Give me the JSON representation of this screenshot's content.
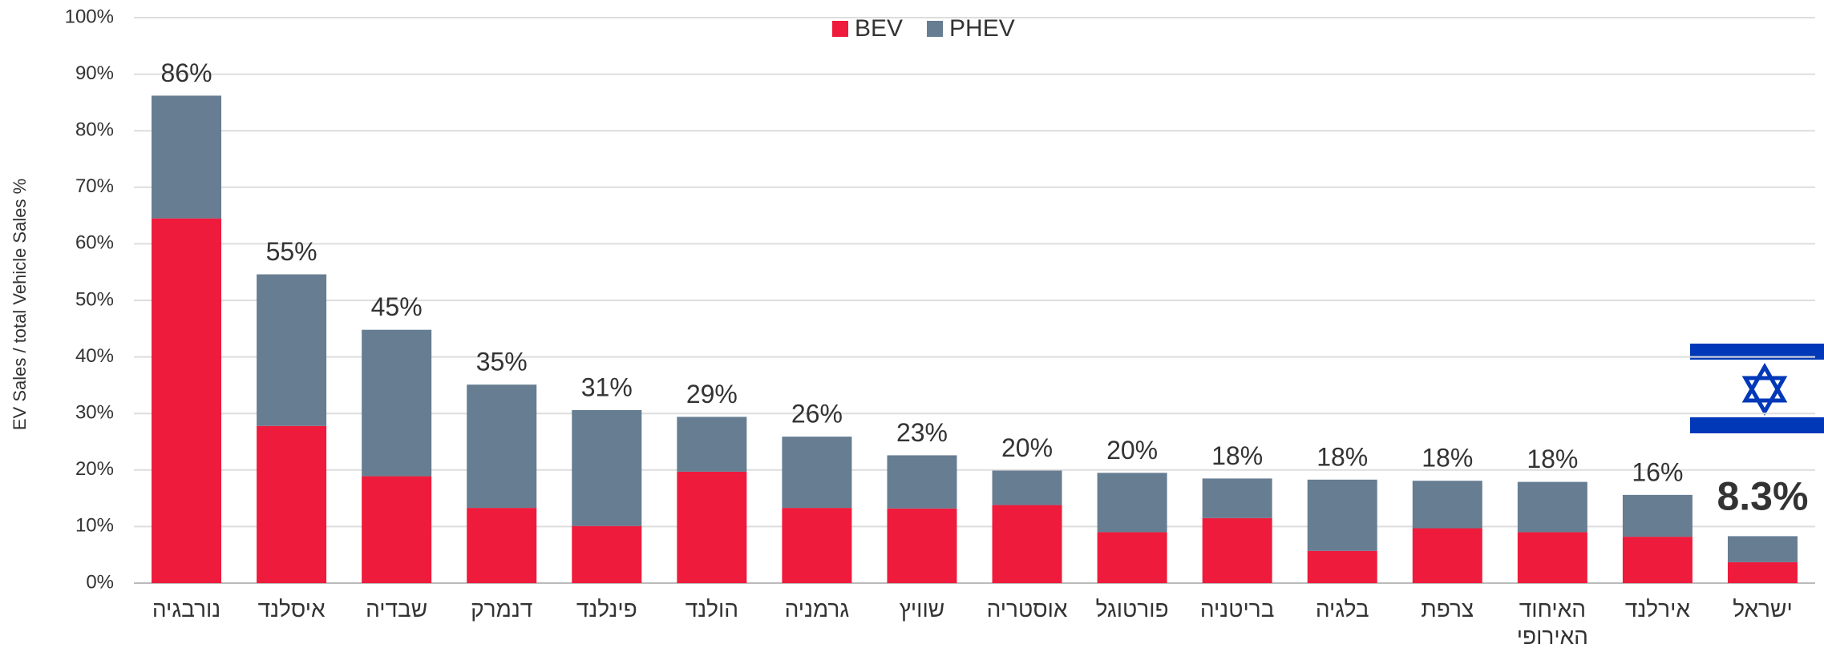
{
  "chart_data": {
    "type": "stacked-bar",
    "y_label": "EV Sales / total Vehicle Sales %",
    "categories": [
      "נורבגיה",
      "איסלנד",
      "שבדיה",
      "דנמרק",
      "פינלנד",
      "הולנד",
      "גרמניה",
      "שוויץ",
      "אוסטריה",
      "פורטוגל",
      "בריטניה",
      "בלגיה",
      "צרפת",
      "האיחוד האירופי",
      "אירלנד",
      "ישראל"
    ],
    "series": [
      {
        "name": "BEV",
        "color": "#ee1b3c",
        "values": [
          64.5,
          27.8,
          18.9,
          13.3,
          10.1,
          19.7,
          13.3,
          13.2,
          13.8,
          9.0,
          11.5,
          5.7,
          9.7,
          9.0,
          8.2,
          3.7
        ]
      },
      {
        "name": "PHEV",
        "color": "#667d92",
        "values": [
          21.7,
          26.8,
          25.9,
          21.8,
          20.5,
          9.7,
          12.6,
          9.4,
          6.1,
          10.5,
          7.0,
          12.6,
          8.4,
          8.9,
          7.4,
          4.6
        ]
      }
    ],
    "total_labels": [
      "86%",
      "55%",
      "45%",
      "35%",
      "31%",
      "29%",
      "26%",
      "23%",
      "20%",
      "20%",
      "18%",
      "18%",
      "18%",
      "18%",
      "16%",
      "8.3%"
    ],
    "ylim": [
      0,
      100
    ],
    "yticks": [
      {
        "value": 0,
        "label": "0%"
      },
      {
        "value": 10,
        "label": "10%"
      },
      {
        "value": 20,
        "label": "20%"
      },
      {
        "value": 30,
        "label": "30%"
      },
      {
        "value": 40,
        "label": "40%"
      },
      {
        "value": 50,
        "label": "50%"
      },
      {
        "value": 60,
        "label": "60%"
      },
      {
        "value": 70,
        "label": "70%"
      },
      {
        "value": 80,
        "label": "80%"
      },
      {
        "value": 90,
        "label": "90%"
      },
      {
        "value": 100,
        "label": "100%"
      }
    ],
    "grid": true,
    "legend": "top"
  }
}
